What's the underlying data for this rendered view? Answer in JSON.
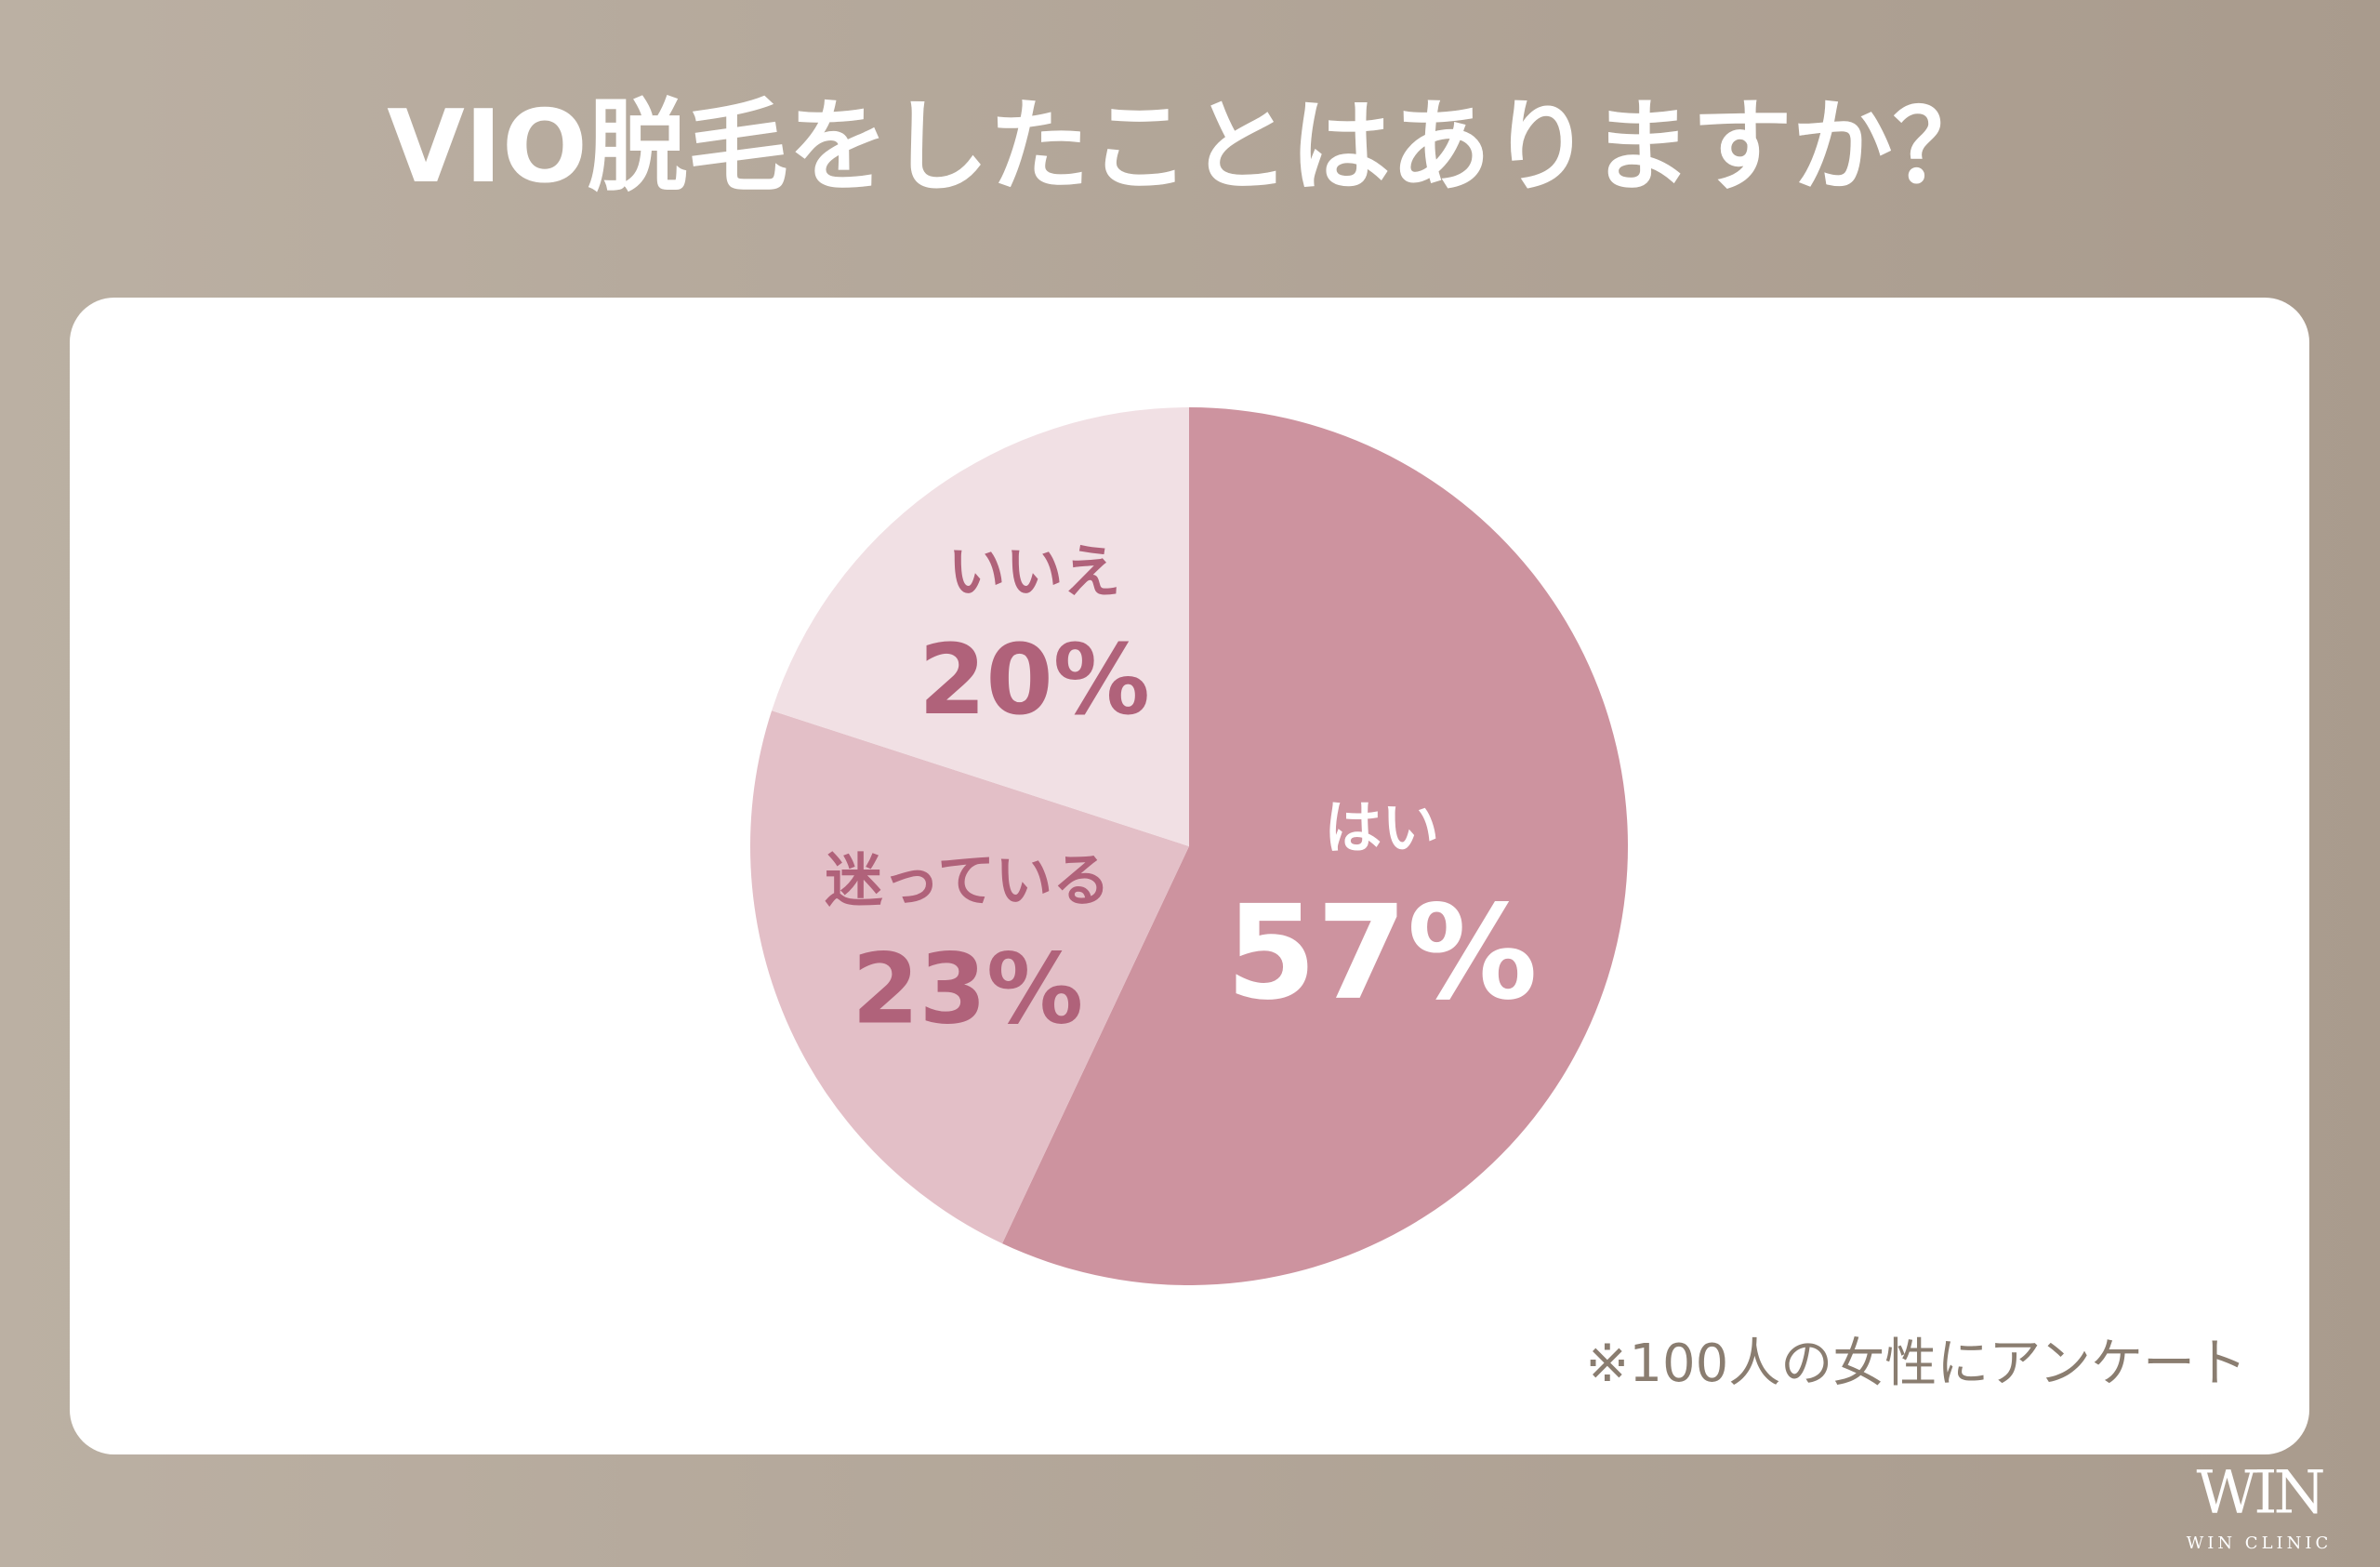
{
  "chart_data": {
    "type": "pie",
    "title": "VIO脱毛をしたことはありますか？",
    "categories": [
      "はい",
      "迷っている",
      "いいえ"
    ],
    "values": [
      57,
      23,
      20
    ],
    "value_labels": [
      "57%",
      "23%",
      "20%"
    ],
    "colors": [
      "#cd939f",
      "#e3bfc7",
      "#f1e0e4"
    ],
    "note": "※100人の女性にアンケート"
  },
  "logo": {
    "mark": "WIN",
    "text": "WIN CLINIC"
  }
}
